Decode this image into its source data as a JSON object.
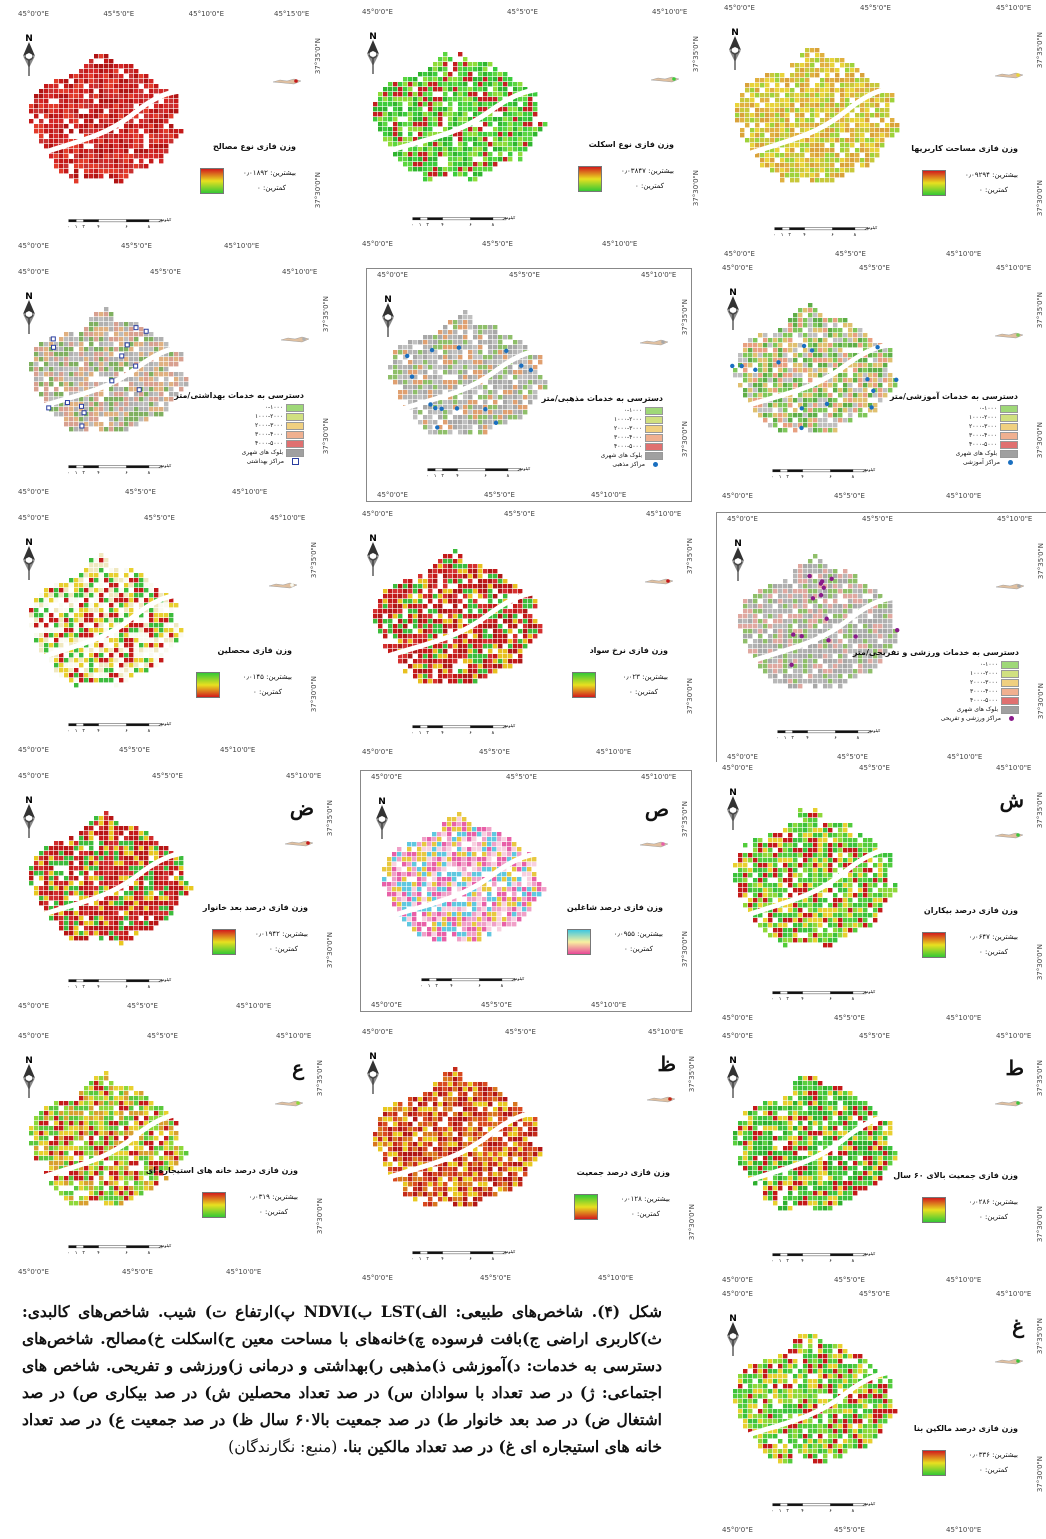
{
  "caption": {
    "text": "شکل (۴). شاخص‌های طبیعی: الف)LST ب)NDVI پ)ارتفاع ت) شیب. شاخص‌های کالبدی: ث)کاربری اراضی ج)بافت فرسوده چ)خانه‌های با مساحت معین ح)اسکلت خ)مصالح. شاخص‌های دسترسی به خدمات: د)آموزشی ذ)مذهبی ر)بهداشتی و درمانی ز)ورزشی و تفریحی. شاخص های اجتماعی: ژ) در صد تعداد با سوادان س) در صد تعداد محصلین ش) در صد بیکاری ص) در صد اشتغال ض) در صد بعد خانوار ط) در صد جمعیت بالا۶۰ سال ظ) در صد جمعیت ع) در صد تعداد خانه های استیجاره ای غ) در صد تعداد مالکین بنا.",
    "source": "(منبع: نگارندگان)"
  },
  "scale_title": "کیلومتر",
  "scale_ticks": [
    "۰",
    "۱",
    "۲",
    "۴",
    "۶",
    "۸"
  ],
  "max_label": "بیشترین:",
  "min_label": "کمترین: ۰",
  "panels": [
    {
      "id": "p1",
      "title": "وزن فازی مساحت کاربریها",
      "max": "بیشترین: ۰٫۰۹۲۹۴",
      "top": [
        "45°0'0\"E",
        "45°5'0\"E",
        "45°10'0\"E"
      ],
      "bottom": [
        "45°0'0\"E",
        "45°5'0\"E",
        "45°10'0\"E"
      ],
      "side": [
        "37°35'0\"N",
        "37°30'0\"N"
      ],
      "colors": [
        "#e8d33a",
        "#d9a23a",
        "#c8c83a",
        "#e0b040",
        "#9fd23a"
      ],
      "legend": [
        "#d21c1c",
        "#e8e020",
        "#35c835"
      ]
    },
    {
      "id": "p2",
      "title": "وزن فازی نوع اسکلت",
      "max": "بیشترین: ۰٫۰۳۸۴۷",
      "top": [
        "45°0'0\"E",
        "45°5'0\"E",
        "45°10'0\"E"
      ],
      "bottom": [
        "45°0'0\"E",
        "45°5'0\"E",
        "45°10'0\"E"
      ],
      "side": [
        "37°35'0\"N",
        "37°30'0\"N"
      ],
      "colors": [
        "#3ccc3c",
        "#5ad640",
        "#2fb52f",
        "#c42020",
        "#8fdc3a"
      ],
      "legend": [
        "#d21c1c",
        "#e8e020",
        "#35c835"
      ]
    },
    {
      "id": "p3",
      "title": "وزن فازی نوع مصالح",
      "max": "بیشترین: ۰٫۰۱۸۹۲",
      "top": [
        "45°0'0\"E",
        "45°5'0\"E",
        "45°10'0\"E",
        "45°15'0\"E"
      ],
      "bottom": [
        "45°0'0\"E",
        "45°5'0\"E",
        "45°10'0\"E"
      ],
      "side": [
        "37°35'0\"N",
        "37°30'0\"N"
      ],
      "colors": [
        "#c41a1a",
        "#d42626",
        "#b01414",
        "#c83030",
        "#e23a2a"
      ],
      "legend": [
        "#d21c1c",
        "#e8e020",
        "#35c835"
      ]
    },
    {
      "id": "p4",
      "title": "دسترسی به خدمات آموزشی/متر",
      "top": [
        "45°0'0\"E",
        "45°5'0\"E",
        "45°10'0\"E"
      ],
      "bottom": [
        "45°0'0\"E",
        "45°5'0\"E",
        "45°10'0\"E"
      ],
      "side": [
        "37°35'0\"N",
        "37°30'0\"N"
      ],
      "colors": [
        "#7fc65a",
        "#5fae48",
        "#bfbfbf",
        "#e0c070",
        "#e8a080"
      ],
      "rows": [
        {
          "c": "#9fd878",
          "t": "۰-۱۰۰۰"
        },
        {
          "c": "#d0e080",
          "t": "۱۰۰۰-۲۰۰۰"
        },
        {
          "c": "#f0d080",
          "t": "۲۰۰۰-۳۰۰۰"
        },
        {
          "c": "#f0b090",
          "t": "۳۰۰۰-۴۰۰۰"
        },
        {
          "c": "#e07070",
          "t": "۴۰۰۰-۵۰۰۰"
        },
        {
          "c": "#a0a0a0",
          "t": "بلوک های شهری"
        }
      ],
      "marker": {
        "kind": "dot",
        "c": "#1a6fc0",
        "t": "مراکز آموزشی"
      }
    },
    {
      "id": "p5",
      "title": "دسترسی به خدمات مذهبی/متر",
      "top": [
        "45°0'0\"E",
        "45°5'0\"E",
        "45°10'0\"E"
      ],
      "bottom": [
        "45°0'0\"E",
        "45°5'0\"E",
        "45°10'0\"E"
      ],
      "side": [
        "37°35'0\"N",
        "37°30'0\"N"
      ],
      "colors": [
        "#a8a8a8",
        "#b4b4b4",
        "#e0a070",
        "#8fbf6a",
        "#c0c0c0"
      ],
      "rows": [
        {
          "c": "#9fd878",
          "t": "۰-۱۰۰۰"
        },
        {
          "c": "#d0e080",
          "t": "۱۰۰۰-۲۰۰۰"
        },
        {
          "c": "#f0d080",
          "t": "۲۰۰۰-۳۰۰۰"
        },
        {
          "c": "#f0b090",
          "t": "۳۰۰۰-۴۰۰۰"
        },
        {
          "c": "#e07070",
          "t": "۴۰۰۰-۵۰۰۰"
        },
        {
          "c": "#a0a0a0",
          "t": "بلوک های شهری"
        }
      ],
      "marker": {
        "kind": "dot",
        "c": "#1a6fc0",
        "t": "مراکز مذهبی"
      }
    },
    {
      "id": "p6",
      "title": "دسترسی به خدمات بهداشتی/متر",
      "top": [
        "45°0'0\"E",
        "45°5'0\"E",
        "45°10'0\"E"
      ],
      "bottom": [
        "45°0'0\"E",
        "45°5'0\"E",
        "45°10'0\"E"
      ],
      "side": [
        "37°35'0\"N",
        "37°30'0\"N"
      ],
      "colors": [
        "#b0b0b0",
        "#e0b080",
        "#7fb060",
        "#d8a090",
        "#bcbcbc"
      ],
      "rows": [
        {
          "c": "#9fd878",
          "t": "۰-۱۰۰۰"
        },
        {
          "c": "#d0e080",
          "t": "۱۰۰۰-۲۰۰۰"
        },
        {
          "c": "#f0d080",
          "t": "۲۰۰۰-۳۰۰۰"
        },
        {
          "c": "#f0b090",
          "t": "۳۰۰۰-۴۰۰۰"
        },
        {
          "c": "#e07070",
          "t": "۴۰۰۰-۵۰۰۰"
        },
        {
          "c": "#a0a0a0",
          "t": "بلوک های شهری"
        }
      ],
      "marker": {
        "kind": "sq",
        "c": "#ffffff",
        "t": "مراکز بهداشتی"
      }
    },
    {
      "id": "p7",
      "title": "دسترسی به خدمات ورزشی و تفریحی/متر",
      "top": [
        "45°0'0\"E",
        "45°5'0\"E",
        "45°10'0\"E"
      ],
      "bottom": [
        "45°0'0\"E",
        "45°5'0\"E",
        "45°10'0\"E"
      ],
      "side": [
        "37°35'0\"N",
        "37°30'0\"N"
      ],
      "colors": [
        "#a8a8a8",
        "#b8b8b8",
        "#8fbf6a",
        "#e0a8a0",
        "#b0b0b0"
      ],
      "rows": [
        {
          "c": "#9fd878",
          "t": "۰-۱۰۰۰"
        },
        {
          "c": "#d0e080",
          "t": "۱۰۰۰-۲۰۰۰"
        },
        {
          "c": "#f0d080",
          "t": "۲۰۰۰-۳۰۰۰"
        },
        {
          "c": "#f0b090",
          "t": "۳۰۰۰-۴۰۰۰"
        },
        {
          "c": "#e07070",
          "t": "۴۰۰۰-۵۰۰۰"
        },
        {
          "c": "#a0a0a0",
          "t": "بلوک های شهری"
        }
      ],
      "marker": {
        "kind": "dot",
        "c": "#8a1a8a",
        "t": "مراکز ورزشی و تفریحی"
      }
    },
    {
      "id": "p8",
      "title": "وزن فازی نرخ سواد",
      "max": "بیشترین: ۰٫۰۲۳",
      "top": [
        "45°0'0\"E",
        "45°5'0\"E",
        "45°10'0\"E"
      ],
      "bottom": [
        "45°0'0\"E",
        "45°5'0\"E",
        "45°10'0\"E"
      ],
      "side": [
        "37°35'0\"N",
        "37°30'0\"N"
      ],
      "colors": [
        "#c41a1a",
        "#d43030",
        "#e8c020",
        "#3cbc3c",
        "#b01818"
      ],
      "legend": [
        "#35c835",
        "#e8e020",
        "#d21c1c"
      ]
    },
    {
      "id": "p9",
      "title": "وزن فازی محصلین",
      "max": "بیشترین: ۰٫۰۱۴۵",
      "top": [
        "45°0'0\"E",
        "45°5'0\"E",
        "45°10'0\"E"
      ],
      "bottom": [
        "45°0'0\"E",
        "45°5'0\"E",
        "45°10'0\"E"
      ],
      "side": [
        "37°35'0\"N",
        "37°30'0\"N"
      ],
      "colors": [
        "#fafaf0",
        "#c41a1a",
        "#e8d030",
        "#f0e8c0",
        "#3cbc3c"
      ],
      "legend": [
        "#35c835",
        "#e8e020",
        "#d21c1c"
      ]
    },
    {
      "id": "p10",
      "letter": "ش",
      "title": "وزن فازی درصد بیکاران",
      "max": "بیشترین: ۰٫۰۶۴۷",
      "top": [
        "45°0'0\"E",
        "45°5'0\"E",
        "45°10'0\"E"
      ],
      "bottom": [
        "45°0'0\"E",
        "45°5'0\"E",
        "45°10'0\"E"
      ],
      "side": [
        "37°35'0\"N",
        "37°30'0\"N"
      ],
      "colors": [
        "#3cc23c",
        "#52cc3c",
        "#8ed83a",
        "#c41a1a",
        "#e8d030"
      ],
      "legend": [
        "#d21c1c",
        "#e8e020",
        "#35c835"
      ]
    },
    {
      "id": "p11",
      "letter": "ص",
      "title": "وزن فازی درصد شاغلین",
      "max": "بیشترین: ۰٫۰۹۵۵",
      "top": [
        "45°0'0\"E",
        "45°5'0\"E",
        "45°10'0\"E"
      ],
      "bottom": [
        "45°0'0\"E",
        "45°5'0\"E",
        "45°10'0\"E"
      ],
      "side": [
        "37°35'0\"N",
        "37°30'0\"N"
      ],
      "colors": [
        "#e860a8",
        "#f0a0c8",
        "#f8d0e0",
        "#60c8e0",
        "#e8c840"
      ],
      "legend": [
        "#40c8e0",
        "#f8f0a0",
        "#e84898"
      ]
    },
    {
      "id": "p12",
      "letter": "ض",
      "title": "وزن فازی درصد بعد خانوار",
      "max": "بیشترین: ۰٫۰۱۹۴۲",
      "top": [
        "45°0'0\"E",
        "45°5'0\"E",
        "45°10'0\"E"
      ],
      "bottom": [
        "45°0'0\"E",
        "45°5'0\"E",
        "45°10'0\"E"
      ],
      "side": [
        "37°35'0\"N",
        "37°30'0\"N"
      ],
      "colors": [
        "#c41a1a",
        "#b81616",
        "#d02c2c",
        "#e8c820",
        "#3cbc3c"
      ],
      "legend": [
        "#d21c1c",
        "#e8e020",
        "#35c835"
      ]
    },
    {
      "id": "p13",
      "letter": "ط",
      "title": "وزن فازی جمعیت بالای ۶۰ سال",
      "max": "بیشترین: ۰٫۰۲۸۶",
      "top": [
        "45°0'0\"E",
        "45°5'0\"E",
        "45°10'0\"E"
      ],
      "bottom": [
        "45°0'0\"E",
        "45°5'0\"E",
        "45°10'0\"E"
      ],
      "side": [
        "37°35'0\"N",
        "37°30'0\"N"
      ],
      "colors": [
        "#3cc23c",
        "#2fb02f",
        "#5ad040",
        "#c41a1a",
        "#e8d030"
      ],
      "legend": [
        "#d21c1c",
        "#e8e020",
        "#35c835"
      ]
    },
    {
      "id": "p14",
      "letter": "ظ",
      "title": "وزن فازی درصد جمعیت",
      "max": "بیشترین: ۰٫۰۱۲۸",
      "top": [
        "45°0'0\"E",
        "45°5'0\"E",
        "45°10'0\"E"
      ],
      "bottom": [
        "45°0'0\"E",
        "45°5'0\"E",
        "45°10'0\"E"
      ],
      "side": [
        "37°35'0\"N",
        "37°30'0\"N"
      ],
      "colors": [
        "#c42a1a",
        "#d8761e",
        "#e8c820",
        "#b01616",
        "#d84a20"
      ],
      "legend": [
        "#35c835",
        "#e8e020",
        "#d21c1c"
      ]
    },
    {
      "id": "p15",
      "letter": "ع",
      "title": "وزن فازی درصد خانه های استیجاره ای",
      "max": "بیشترین: ۰٫۰۳۱۹",
      "top": [
        "45°0'0\"E",
        "45°5'0\"E",
        "45°10'0\"E"
      ],
      "bottom": [
        "45°0'0\"E",
        "45°5'0\"E",
        "45°10'0\"E"
      ],
      "side": [
        "37°35'0\"N",
        "37°30'0\"N"
      ],
      "colors": [
        "#8ed83a",
        "#e8d030",
        "#5ac83c",
        "#d8a030",
        "#c41a1a"
      ],
      "legend": [
        "#d21c1c",
        "#e8e020",
        "#35c835"
      ]
    },
    {
      "id": "p16",
      "letter": "غ",
      "title": "وزن فازی درصد مالکین بنا",
      "max": "بیشترین: ۰٫۰۳۳۶",
      "top": [
        "45°0'0\"E",
        "45°5'0\"E",
        "45°10'0\"E"
      ],
      "bottom": [
        "45°0'0\"E",
        "45°5'0\"E",
        "45°10'0\"E"
      ],
      "side": [
        "37°35'0\"N",
        "37°30'0\"N"
      ],
      "colors": [
        "#3cc23c",
        "#52cc3c",
        "#8ed83a",
        "#c41a1a",
        "#e8d030"
      ],
      "legend": [
        "#d21c1c",
        "#e8e020",
        "#35c835"
      ]
    }
  ]
}
